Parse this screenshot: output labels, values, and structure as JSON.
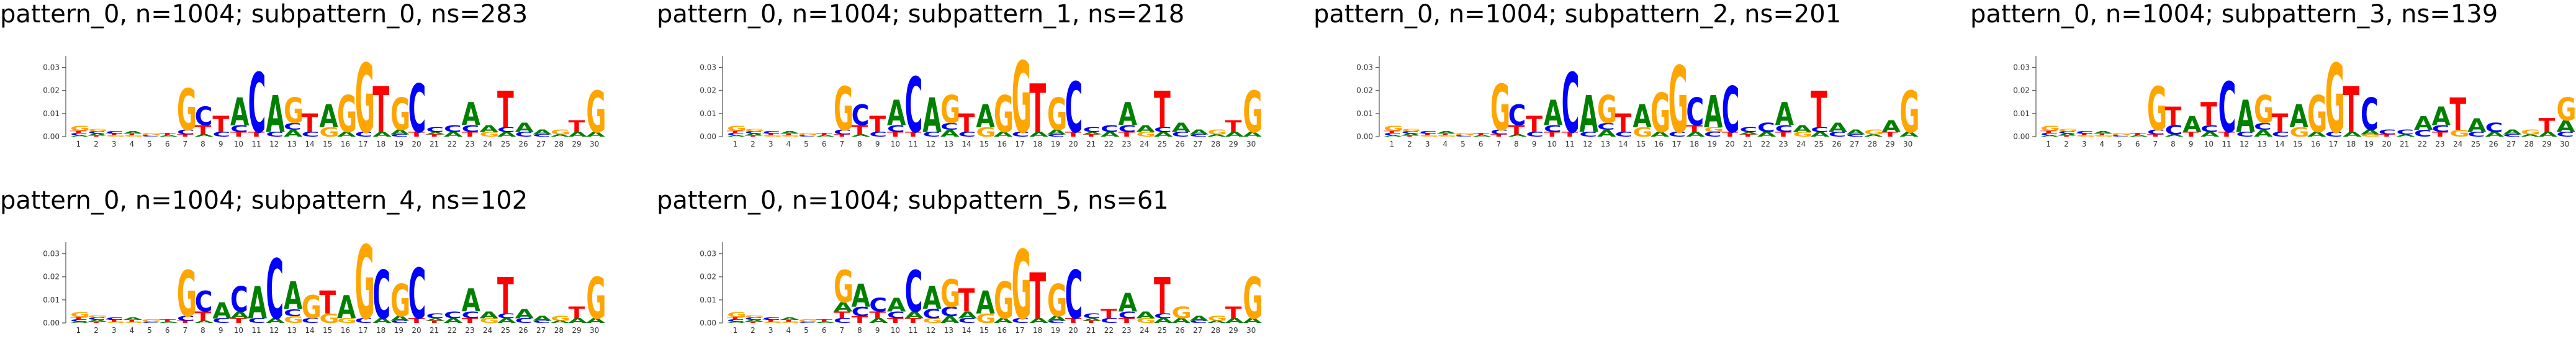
{
  "colors": {
    "A": "#008000",
    "C": "#0000ff",
    "G": "#ffa500",
    "T": "#ff0000"
  },
  "axis": {
    "yticks": [
      0,
      0.01,
      0.02,
      0.03
    ],
    "ytick_labels": [
      "0.00",
      "0.01",
      "0.02",
      "0.03"
    ],
    "positions": [
      "1",
      "2",
      "3",
      "4",
      "5",
      "6",
      "7",
      "8",
      "9",
      "10",
      "11",
      "12",
      "13",
      "14",
      "15",
      "16",
      "17",
      "18",
      "19",
      "20",
      "21",
      "22",
      "23",
      "24",
      "25",
      "26",
      "27",
      "28",
      "29",
      "30"
    ]
  },
  "chart_data": [
    {
      "type": "sequence-logo",
      "title": "pattern_0, n=1004; subpattern_0, ns=283",
      "ylim": [
        0,
        0.035
      ],
      "stacks": [
        {
          "G": 0.002,
          "C": 0.001,
          "T": 0.001,
          "A": 0.0005
        },
        {
          "C": 0.001,
          "G": 0.001,
          "A": 0.0008,
          "T": 0.0005
        },
        {
          "C": 0.001,
          "T": 0.0008,
          "G": 0.0006
        },
        {
          "A": 0.001,
          "T": 0.0008,
          "G": 0.0006
        },
        {
          "G": 0.001,
          "C": 0.0006
        },
        {
          "T": 0.001,
          "A": 0.0006
        },
        {
          "G": 0.018,
          "C": 0.002,
          "T": 0.001
        },
        {
          "C": 0.008,
          "T": 0.004,
          "A": 0.001
        },
        {
          "T": 0.007,
          "C": 0.002
        },
        {
          "A": 0.012,
          "C": 0.003,
          "T": 0.002
        },
        {
          "C": 0.026,
          "T": 0.002
        },
        {
          "A": 0.016,
          "C": 0.002
        },
        {
          "G": 0.011,
          "A": 0.003,
          "C": 0.003
        },
        {
          "T": 0.008,
          "C": 0.002
        },
        {
          "A": 0.01,
          "G": 0.004
        },
        {
          "G": 0.016,
          "A": 0.002
        },
        {
          "G": 0.03,
          "C": 0.002
        },
        {
          "T": 0.02,
          "A": 0.002
        },
        {
          "G": 0.014,
          "A": 0.002,
          "C": 0.001
        },
        {
          "C": 0.021,
          "T": 0.002
        },
        {
          "C": 0.002,
          "T": 0.001,
          "A": 0.001
        },
        {
          "C": 0.003,
          "A": 0.002
        },
        {
          "A": 0.01,
          "C": 0.003,
          "T": 0.002
        },
        {
          "A": 0.003,
          "G": 0.002
        },
        {
          "T": 0.016,
          "A": 0.002,
          "C": 0.002
        },
        {
          "A": 0.004,
          "C": 0.002
        },
        {
          "A": 0.002,
          "C": 0.001
        },
        {
          "G": 0.002,
          "A": 0.001
        },
        {
          "T": 0.005,
          "A": 0.002
        },
        {
          "G": 0.018,
          "A": 0.002
        }
      ]
    },
    {
      "type": "sequence-logo",
      "title": "pattern_0, n=1004; subpattern_1, ns=218",
      "ylim": [
        0,
        0.035
      ],
      "stacks": [
        {
          "G": 0.002,
          "C": 0.001,
          "T": 0.001,
          "A": 0.0005
        },
        {
          "C": 0.001,
          "G": 0.001,
          "A": 0.0008,
          "T": 0.0005
        },
        {
          "C": 0.001,
          "T": 0.0008,
          "G": 0.0006
        },
        {
          "A": 0.001,
          "T": 0.0008,
          "G": 0.0006
        },
        {
          "G": 0.001,
          "C": 0.0006
        },
        {
          "T": 0.001,
          "A": 0.0006
        },
        {
          "G": 0.019,
          "C": 0.002,
          "T": 0.001
        },
        {
          "C": 0.009,
          "T": 0.004,
          "A": 0.001
        },
        {
          "T": 0.007,
          "C": 0.002
        },
        {
          "A": 0.011,
          "C": 0.003,
          "T": 0.002
        },
        {
          "C": 0.024,
          "T": 0.002
        },
        {
          "A": 0.015,
          "C": 0.002
        },
        {
          "G": 0.012,
          "A": 0.003,
          "C": 0.003
        },
        {
          "T": 0.008,
          "C": 0.002
        },
        {
          "A": 0.01,
          "G": 0.004
        },
        {
          "G": 0.016,
          "A": 0.002
        },
        {
          "G": 0.031,
          "C": 0.002
        },
        {
          "T": 0.021,
          "A": 0.002
        },
        {
          "G": 0.014,
          "A": 0.002,
          "C": 0.001
        },
        {
          "C": 0.022,
          "T": 0.002
        },
        {
          "C": 0.002,
          "T": 0.001,
          "A": 0.001
        },
        {
          "C": 0.003,
          "A": 0.002
        },
        {
          "A": 0.01,
          "C": 0.003,
          "T": 0.002
        },
        {
          "A": 0.003,
          "G": 0.002
        },
        {
          "T": 0.016,
          "A": 0.002,
          "C": 0.002
        },
        {
          "A": 0.004,
          "C": 0.002
        },
        {
          "A": 0.002,
          "C": 0.001
        },
        {
          "G": 0.002,
          "A": 0.001
        },
        {
          "T": 0.005,
          "A": 0.002
        },
        {
          "G": 0.018,
          "A": 0.002
        }
      ]
    },
    {
      "type": "sequence-logo",
      "title": "pattern_0, n=1004; subpattern_2, ns=201",
      "ylim": [
        0,
        0.035
      ],
      "stacks": [
        {
          "G": 0.002,
          "C": 0.001,
          "T": 0.001,
          "A": 0.0005
        },
        {
          "C": 0.001,
          "G": 0.001,
          "A": 0.0008,
          "T": 0.0005
        },
        {
          "C": 0.001,
          "T": 0.0008,
          "G": 0.0006
        },
        {
          "A": 0.001,
          "T": 0.0008,
          "G": 0.0006
        },
        {
          "G": 0.001,
          "C": 0.0006
        },
        {
          "T": 0.001,
          "A": 0.0006
        },
        {
          "G": 0.02,
          "C": 0.002,
          "T": 0.001
        },
        {
          "C": 0.009,
          "T": 0.004,
          "A": 0.001
        },
        {
          "T": 0.007,
          "C": 0.002
        },
        {
          "A": 0.011,
          "C": 0.003,
          "T": 0.002
        },
        {
          "C": 0.026,
          "T": 0.002
        },
        {
          "A": 0.016,
          "C": 0.002
        },
        {
          "G": 0.012,
          "A": 0.003,
          "C": 0.003
        },
        {
          "T": 0.008,
          "C": 0.002
        },
        {
          "A": 0.01,
          "G": 0.004
        },
        {
          "G": 0.017,
          "A": 0.002
        },
        {
          "G": 0.029,
          "C": 0.002
        },
        {
          "C": 0.012,
          "T": 0.003,
          "A": 0.002
        },
        {
          "A": 0.014,
          "C": 0.002,
          "G": 0.002
        },
        {
          "C": 0.02,
          "T": 0.002
        },
        {
          "C": 0.002,
          "T": 0.001,
          "A": 0.001
        },
        {
          "C": 0.004,
          "A": 0.002
        },
        {
          "A": 0.01,
          "C": 0.003,
          "T": 0.002
        },
        {
          "A": 0.003,
          "G": 0.002
        },
        {
          "T": 0.016,
          "A": 0.002,
          "C": 0.002
        },
        {
          "A": 0.004,
          "C": 0.002
        },
        {
          "A": 0.002,
          "C": 0.001
        },
        {
          "G": 0.002,
          "A": 0.001
        },
        {
          "A": 0.005,
          "T": 0.002
        },
        {
          "G": 0.018,
          "A": 0.002
        }
      ]
    },
    {
      "type": "sequence-logo",
      "title": "pattern_0, n=1004; subpattern_3, ns=139",
      "ylim": [
        0,
        0.035
      ],
      "stacks": [
        {
          "G": 0.002,
          "C": 0.001,
          "T": 0.001,
          "A": 0.0005
        },
        {
          "C": 0.001,
          "G": 0.001,
          "A": 0.0008,
          "T": 0.0005
        },
        {
          "C": 0.001,
          "T": 0.0008,
          "G": 0.0006
        },
        {
          "A": 0.001,
          "T": 0.0008,
          "G": 0.0006
        },
        {
          "G": 0.001,
          "C": 0.0006
        },
        {
          "T": 0.001,
          "A": 0.0006
        },
        {
          "G": 0.019,
          "C": 0.002,
          "T": 0.001
        },
        {
          "T": 0.008,
          "C": 0.004,
          "A": 0.001
        },
        {
          "A": 0.007,
          "T": 0.002
        },
        {
          "T": 0.01,
          "C": 0.003,
          "A": 0.002
        },
        {
          "C": 0.022,
          "T": 0.002
        },
        {
          "A": 0.014,
          "C": 0.002
        },
        {
          "G": 0.012,
          "A": 0.003,
          "C": 0.003
        },
        {
          "T": 0.008,
          "C": 0.002
        },
        {
          "A": 0.01,
          "G": 0.004
        },
        {
          "G": 0.016,
          "A": 0.002
        },
        {
          "G": 0.03,
          "C": 0.002
        },
        {
          "T": 0.02,
          "A": 0.002
        },
        {
          "C": 0.014,
          "A": 0.002,
          "G": 0.001
        },
        {
          "C": 0.002,
          "T": 0.001
        },
        {
          "C": 0.002,
          "A": 0.001
        },
        {
          "A": 0.006,
          "C": 0.003
        },
        {
          "A": 0.008,
          "C": 0.003,
          "T": 0.002
        },
        {
          "T": 0.014,
          "G": 0.003
        },
        {
          "A": 0.006,
          "C": 0.002
        },
        {
          "C": 0.004,
          "A": 0.002
        },
        {
          "A": 0.002,
          "C": 0.001
        },
        {
          "G": 0.002,
          "A": 0.001
        },
        {
          "T": 0.006,
          "A": 0.002
        },
        {
          "G": 0.01,
          "A": 0.005,
          "C": 0.002
        }
      ]
    },
    {
      "type": "sequence-logo",
      "title": "pattern_0, n=1004; subpattern_4, ns=102",
      "ylim": [
        0,
        0.035
      ],
      "stacks": [
        {
          "G": 0.002,
          "C": 0.001,
          "T": 0.001,
          "A": 0.0005
        },
        {
          "C": 0.001,
          "G": 0.001,
          "A": 0.0008,
          "T": 0.0005
        },
        {
          "C": 0.001,
          "T": 0.0008,
          "G": 0.0006
        },
        {
          "A": 0.001,
          "T": 0.0008,
          "G": 0.0006
        },
        {
          "G": 0.001,
          "C": 0.0006
        },
        {
          "T": 0.001,
          "A": 0.0006
        },
        {
          "G": 0.02,
          "C": 0.002,
          "T": 0.001
        },
        {
          "C": 0.009,
          "T": 0.004,
          "A": 0.001
        },
        {
          "A": 0.007,
          "C": 0.002
        },
        {
          "C": 0.011,
          "A": 0.003,
          "T": 0.002
        },
        {
          "A": 0.014,
          "C": 0.002
        },
        {
          "C": 0.026,
          "A": 0.002
        },
        {
          "A": 0.012,
          "G": 0.003,
          "C": 0.003
        },
        {
          "G": 0.01,
          "C": 0.002
        },
        {
          "T": 0.01,
          "G": 0.004
        },
        {
          "A": 0.01,
          "G": 0.002
        },
        {
          "G": 0.032,
          "C": 0.002
        },
        {
          "C": 0.021,
          "A": 0.002
        },
        {
          "G": 0.014,
          "A": 0.002,
          "C": 0.001
        },
        {
          "C": 0.022,
          "T": 0.002
        },
        {
          "C": 0.002,
          "T": 0.001,
          "A": 0.001
        },
        {
          "C": 0.003,
          "A": 0.002
        },
        {
          "A": 0.01,
          "C": 0.003,
          "T": 0.002
        },
        {
          "A": 0.003,
          "G": 0.002
        },
        {
          "T": 0.016,
          "A": 0.002,
          "C": 0.002
        },
        {
          "A": 0.004,
          "C": 0.002
        },
        {
          "A": 0.002,
          "C": 0.001
        },
        {
          "G": 0.002,
          "A": 0.001
        },
        {
          "T": 0.005,
          "A": 0.002
        },
        {
          "G": 0.018,
          "A": 0.002
        }
      ]
    },
    {
      "type": "sequence-logo",
      "title": "pattern_0, n=1004; subpattern_5, ns=61",
      "ylim": [
        0,
        0.035
      ],
      "stacks": [
        {
          "G": 0.002,
          "C": 0.001,
          "T": 0.001,
          "A": 0.0005
        },
        {
          "C": 0.001,
          "G": 0.001,
          "A": 0.0008,
          "T": 0.0005
        },
        {
          "C": 0.001,
          "T": 0.0008,
          "G": 0.0006
        },
        {
          "A": 0.001,
          "T": 0.0008,
          "G": 0.0006
        },
        {
          "G": 0.001,
          "C": 0.0006
        },
        {
          "T": 0.001,
          "A": 0.0006
        },
        {
          "G": 0.014,
          "A": 0.004,
          "T": 0.003,
          "C": 0.002
        },
        {
          "A": 0.01,
          "C": 0.004,
          "T": 0.003
        },
        {
          "C": 0.006,
          "T": 0.003,
          "A": 0.002
        },
        {
          "A": 0.006,
          "C": 0.003,
          "T": 0.002
        },
        {
          "C": 0.018,
          "A": 0.003,
          "T": 0.002
        },
        {
          "A": 0.01,
          "C": 0.004,
          "G": 0.002
        },
        {
          "G": 0.012,
          "C": 0.004,
          "A": 0.003
        },
        {
          "T": 0.01,
          "A": 0.003,
          "C": 0.002
        },
        {
          "A": 0.01,
          "G": 0.004
        },
        {
          "G": 0.016,
          "A": 0.002
        },
        {
          "G": 0.03,
          "C": 0.002
        },
        {
          "T": 0.02,
          "A": 0.002
        },
        {
          "G": 0.014,
          "A": 0.002,
          "C": 0.001
        },
        {
          "C": 0.021,
          "T": 0.002
        },
        {
          "C": 0.002,
          "T": 0.001,
          "A": 0.001
        },
        {
          "T": 0.004,
          "C": 0.002
        },
        {
          "A": 0.008,
          "C": 0.003,
          "T": 0.002
        },
        {
          "A": 0.003,
          "G": 0.002
        },
        {
          "T": 0.016,
          "A": 0.002,
          "C": 0.002
        },
        {
          "G": 0.005,
          "A": 0.002
        },
        {
          "A": 0.002,
          "C": 0.001
        },
        {
          "G": 0.002,
          "A": 0.001
        },
        {
          "T": 0.005,
          "A": 0.002
        },
        {
          "G": 0.018,
          "A": 0.002
        }
      ]
    }
  ]
}
